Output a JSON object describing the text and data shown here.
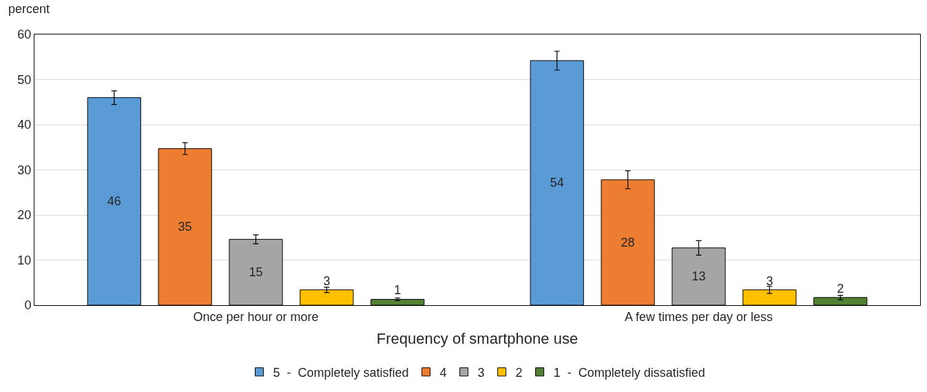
{
  "chart_data": {
    "type": "bar",
    "ylabel": "percent",
    "xlabel": "Frequency of smartphone use",
    "categories": [
      "Once per hour or more",
      "A few times per day or less"
    ],
    "series": [
      {
        "name": "5  -  Completely satisfied",
        "color": "#5b9bd5",
        "values": [
          46.0,
          54.2
        ],
        "errors": [
          1.5,
          2.1
        ],
        "value_labels": [
          "46",
          "54"
        ]
      },
      {
        "name": "4",
        "color": "#ed7d31",
        "values": [
          34.7,
          27.8
        ],
        "errors": [
          1.3,
          2.0
        ],
        "value_labels": [
          "35",
          "28"
        ]
      },
      {
        "name": "3",
        "color": "#a5a5a5",
        "values": [
          14.6,
          12.7
        ],
        "errors": [
          1.0,
          1.6
        ],
        "value_labels": [
          "15",
          "13"
        ]
      },
      {
        "name": "2",
        "color": "#ffc000",
        "values": [
          3.4,
          3.4
        ],
        "errors": [
          0.6,
          0.8
        ],
        "value_labels": [
          "3",
          "3"
        ]
      },
      {
        "name": "1  -  Completely dissatisfied",
        "color": "#548235",
        "values": [
          1.3,
          1.7
        ],
        "errors": [
          0.3,
          0.5
        ],
        "value_labels": [
          "1",
          "2"
        ]
      }
    ],
    "ylim": [
      0,
      60
    ],
    "yticks": [
      0,
      10,
      20,
      30,
      40,
      50,
      60
    ],
    "grid": "y",
    "legend": "bottom"
  }
}
